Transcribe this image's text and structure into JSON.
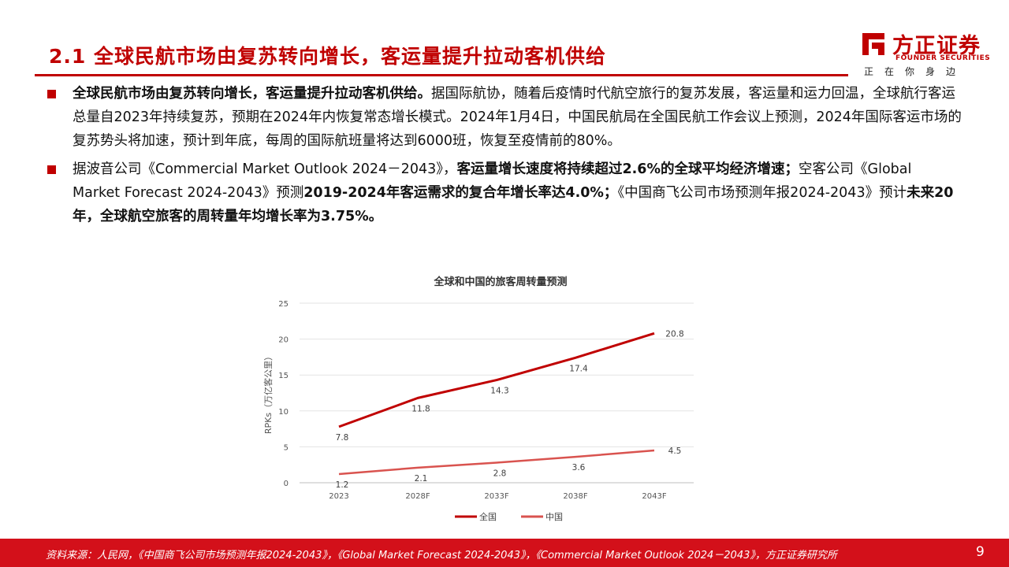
{
  "header": {
    "title": "2.1 全球民航市场由复苏转向增长，客运量提升拉动客机供给"
  },
  "logo": {
    "name_cn": "方正证券",
    "name_en": "FOUNDER SECURITIES",
    "slogan": "正在你身边"
  },
  "bullets": [
    {
      "bold": "全球民航市场由复苏转向增长，客运量提升拉动客机供给。",
      "rest": "据国际航协，随着后疫情时代航空旅行的复苏发展，客运量和运力回温，全球航行客运总量自2023年持续复苏，预期在2024年内恢复常态增长模式。2024年1月4日，中国民航局在全国民航工作会议上预测，2024年国际客运市场的复苏势头将加速，预计到年底，每周的国际航班量将达到6000班，恢复至疫情前的80%。"
    },
    {
      "pre": "据波音公司《Commercial Market Outlook 2024－2043》，",
      "bold1": "客运量增长速度将持续超过2.6%的全球平均经济增速；",
      "mid": "空客公司《Global Market Forecast 2024-2043》预测",
      "bold2": "2019-2024年客运需求的复合年增长率达4.0%；",
      "mid2": "《中国商飞公司市场预测年报2024-2043》预计",
      "bold3": "未来20年，全球航空旅客的周转量年均增长率为3.75%。"
    }
  ],
  "chart_data": {
    "type": "line",
    "title": "全球和中国的旅客周转量预测",
    "ylabel": "RPKs（万亿客公里）",
    "xlabel": "",
    "categories": [
      "2023",
      "2028F",
      "2033F",
      "2038F",
      "2043F"
    ],
    "ylim": [
      0,
      25
    ],
    "yticks": [
      0,
      5,
      10,
      15,
      20,
      25
    ],
    "grid": true,
    "legend": "bottom",
    "series": [
      {
        "name": "全国",
        "values": [
          7.8,
          11.8,
          14.3,
          17.4,
          20.8
        ],
        "color": "#c00000",
        "labels": [
          "7.8",
          "11.8",
          "14.3",
          "17.4",
          "20.8"
        ]
      },
      {
        "name": "中国",
        "values": [
          1.2,
          2.1,
          2.8,
          3.6,
          4.5
        ],
        "color": "#d9534f",
        "labels": [
          "1.2",
          "2.1",
          "2.8",
          "3.6",
          "4.5"
        ]
      }
    ]
  },
  "footer": {
    "source": "资料来源：人民网，《中国商飞公司市场预测年报2024-2043》，《Global Market Forecast 2024-2043》，《Commercial Market Outlook 2024－2043》，方正证券研究所",
    "page": "9"
  },
  "colors": {
    "brand": "#c00000",
    "footer": "#d3101a"
  }
}
